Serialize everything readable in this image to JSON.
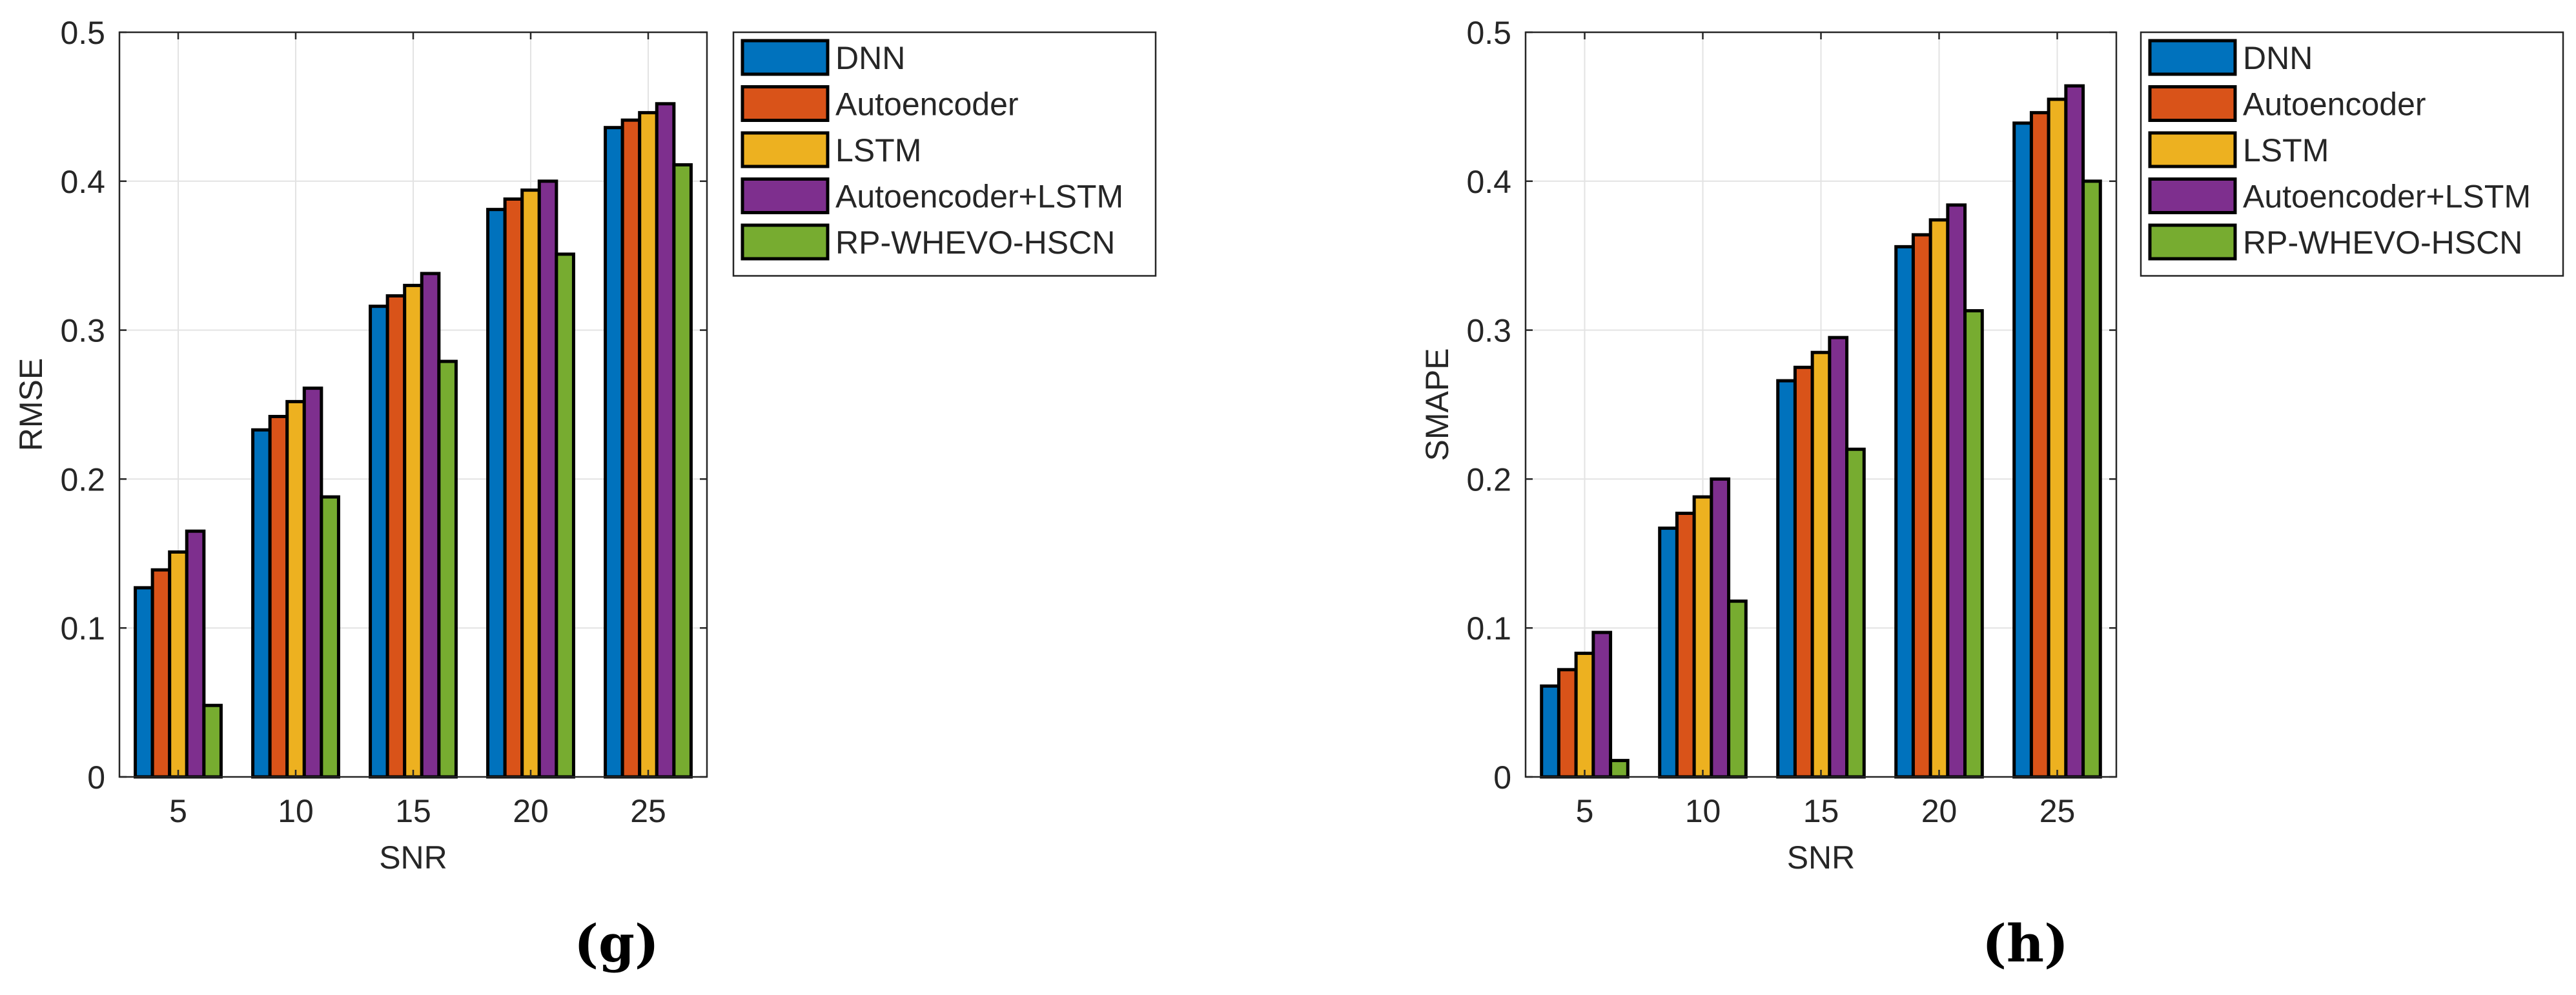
{
  "chart_data": [
    {
      "type": "bar",
      "panel_label": "(g)",
      "categories": [
        "5",
        "10",
        "15",
        "20",
        "25"
      ],
      "xlabel": "SNR",
      "ylabel": "RMSE",
      "ylim": [
        0,
        0.5
      ],
      "yticks": [
        0,
        0.1,
        0.2,
        0.3,
        0.4,
        0.5
      ],
      "ytick_labels": [
        "0",
        "0.1",
        "0.2",
        "0.3",
        "0.4",
        "0.5"
      ],
      "grid": true,
      "legend_position": "outside-right-top",
      "series": [
        {
          "name": "DNN",
          "color": "#0072BD",
          "values": [
            0.127,
            0.233,
            0.316,
            0.381,
            0.436
          ]
        },
        {
          "name": "Autoencoder",
          "color": "#D95319",
          "values": [
            0.139,
            0.242,
            0.323,
            0.388,
            0.441
          ]
        },
        {
          "name": "LSTM",
          "color": "#EDB120",
          "values": [
            0.151,
            0.252,
            0.33,
            0.394,
            0.446
          ]
        },
        {
          "name": "Autoencoder+LSTM",
          "color": "#7E2F8E",
          "values": [
            0.165,
            0.261,
            0.338,
            0.4,
            0.452
          ]
        },
        {
          "name": "RP-WHEVO-HSCN",
          "color": "#77AC30",
          "values": [
            0.048,
            0.188,
            0.279,
            0.351,
            0.411
          ]
        }
      ]
    },
    {
      "type": "bar",
      "panel_label": "(h)",
      "categories": [
        "5",
        "10",
        "15",
        "20",
        "25"
      ],
      "xlabel": "SNR",
      "ylabel": "SMAPE",
      "ylim": [
        0,
        0.5
      ],
      "yticks": [
        0,
        0.1,
        0.2,
        0.3,
        0.4,
        0.5
      ],
      "ytick_labels": [
        "0",
        "0.1",
        "0.2",
        "0.3",
        "0.4",
        "0.5"
      ],
      "grid": true,
      "legend_position": "outside-right-top",
      "series": [
        {
          "name": "DNN",
          "color": "#0072BD",
          "values": [
            0.061,
            0.167,
            0.266,
            0.356,
            0.439
          ]
        },
        {
          "name": "Autoencoder",
          "color": "#D95319",
          "values": [
            0.072,
            0.177,
            0.275,
            0.364,
            0.446
          ]
        },
        {
          "name": "LSTM",
          "color": "#EDB120",
          "values": [
            0.083,
            0.188,
            0.285,
            0.374,
            0.455
          ]
        },
        {
          "name": "Autoencoder+LSTM",
          "color": "#7E2F8E",
          "values": [
            0.097,
            0.2,
            0.295,
            0.384,
            0.464
          ]
        },
        {
          "name": "RP-WHEVO-HSCN",
          "color": "#77AC30",
          "values": [
            0.011,
            0.118,
            0.22,
            0.313,
            0.4
          ]
        }
      ]
    }
  ]
}
